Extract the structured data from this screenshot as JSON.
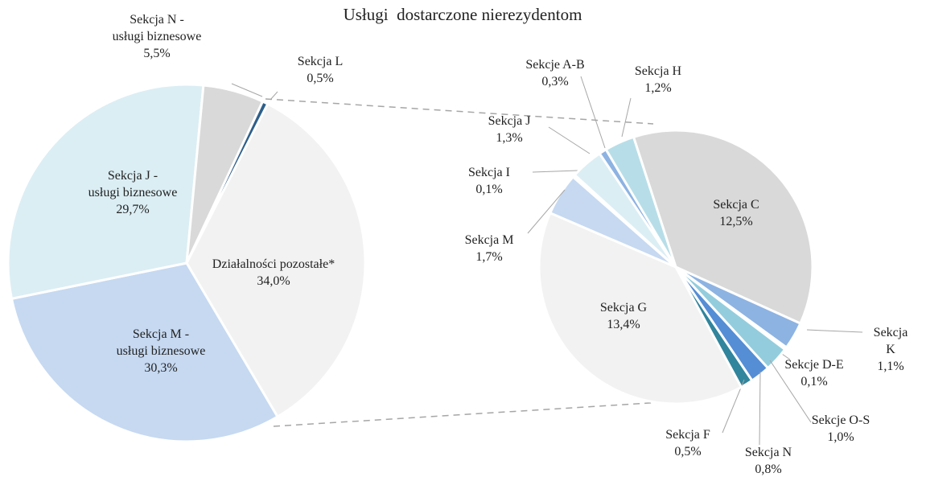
{
  "chart_data": [
    {
      "type": "pie",
      "title": "Usługi  dostarczone nierezydentom",
      "categories": [
        "Działalności pozostałe*",
        "Sekcja M -\nusługi biznesowe",
        "Sekcja J -\nusługi biznesowe",
        "Sekcja N -\nusługi biznesowe",
        "Sekcja L"
      ],
      "values": [
        34.0,
        30.3,
        29.7,
        5.5,
        0.5
      ],
      "value_labels": [
        "34,0%",
        "30,3%",
        "29,7%",
        "5,5%",
        "0,5%"
      ],
      "colors": [
        "#f2f2f2",
        "#c6d9f1",
        "#dbeef4",
        "#d9d9d9",
        "#2e5f8a"
      ]
    },
    {
      "type": "pie",
      "categories": [
        "Sekcja C",
        "Sekcja K",
        "Sekcje D-E",
        "Sekcje O-S",
        "Sekcja N",
        "Sekcja F",
        "Sekcja G",
        "Sekcja M",
        "Sekcja I",
        "Sekcja J",
        "Sekcje A-B",
        "Sekcja H"
      ],
      "values": [
        12.5,
        1.1,
        0.1,
        1.0,
        0.8,
        0.5,
        13.4,
        1.7,
        0.1,
        1.3,
        0.3,
        1.2
      ],
      "value_labels": [
        "12,5%",
        "1,1%",
        "0,1%",
        "1,0%",
        "0,8%",
        "0,5%",
        "13,4%",
        "1,7%",
        "0,1%",
        "1,3%",
        "0,3%",
        "1,2%"
      ],
      "colors": [
        "#d9d9d9",
        "#8db3e2",
        "#c5e3ee",
        "#93cddd",
        "#558ed5",
        "#31859c",
        "#f2f2f2",
        "#c6d9f1",
        "#eaf4f8",
        "#dbeef4",
        "#8db3e2",
        "#b7dee8"
      ]
    }
  ]
}
